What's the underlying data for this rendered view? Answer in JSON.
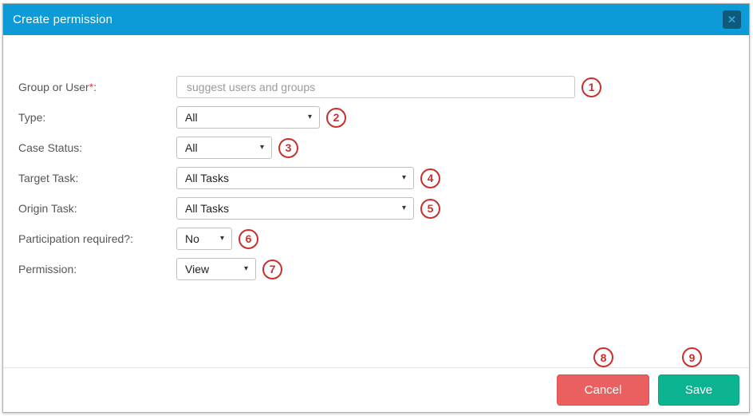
{
  "modal": {
    "title": "Create permission",
    "close_glyph": "✕"
  },
  "ui": {
    "select_arrow": "▾"
  },
  "colors": {
    "header_blue": "#0d9bd8",
    "close_button_bg": "#0e597c",
    "cancel_red": "#ea5f5f",
    "save_green": "#0cb390",
    "annotation_red": "#c9302c"
  },
  "form": {
    "rows": [
      {
        "label": "Group or User",
        "required_mark": "*",
        "colon": ":",
        "placeholder": "suggest users and groups",
        "annotation": "1"
      },
      {
        "label": "Type",
        "colon": ":",
        "value": "All",
        "annotation": "2"
      },
      {
        "label": "Case Status",
        "colon": ":",
        "value": "All",
        "annotation": "3"
      },
      {
        "label": "Target Task",
        "colon": ":",
        "value": "All Tasks",
        "annotation": "4"
      },
      {
        "label": "Origin Task",
        "colon": ":",
        "value": "All Tasks",
        "annotation": "5"
      },
      {
        "label": "Participation required?",
        "colon": ":",
        "value": "No",
        "annotation": "6"
      },
      {
        "label": "Permission",
        "colon": ":",
        "value": "View",
        "annotation": "7"
      }
    ]
  },
  "footer": {
    "cancel_label": "Cancel",
    "save_label": "Save",
    "cancel_annotation": "8",
    "save_annotation": "9"
  }
}
